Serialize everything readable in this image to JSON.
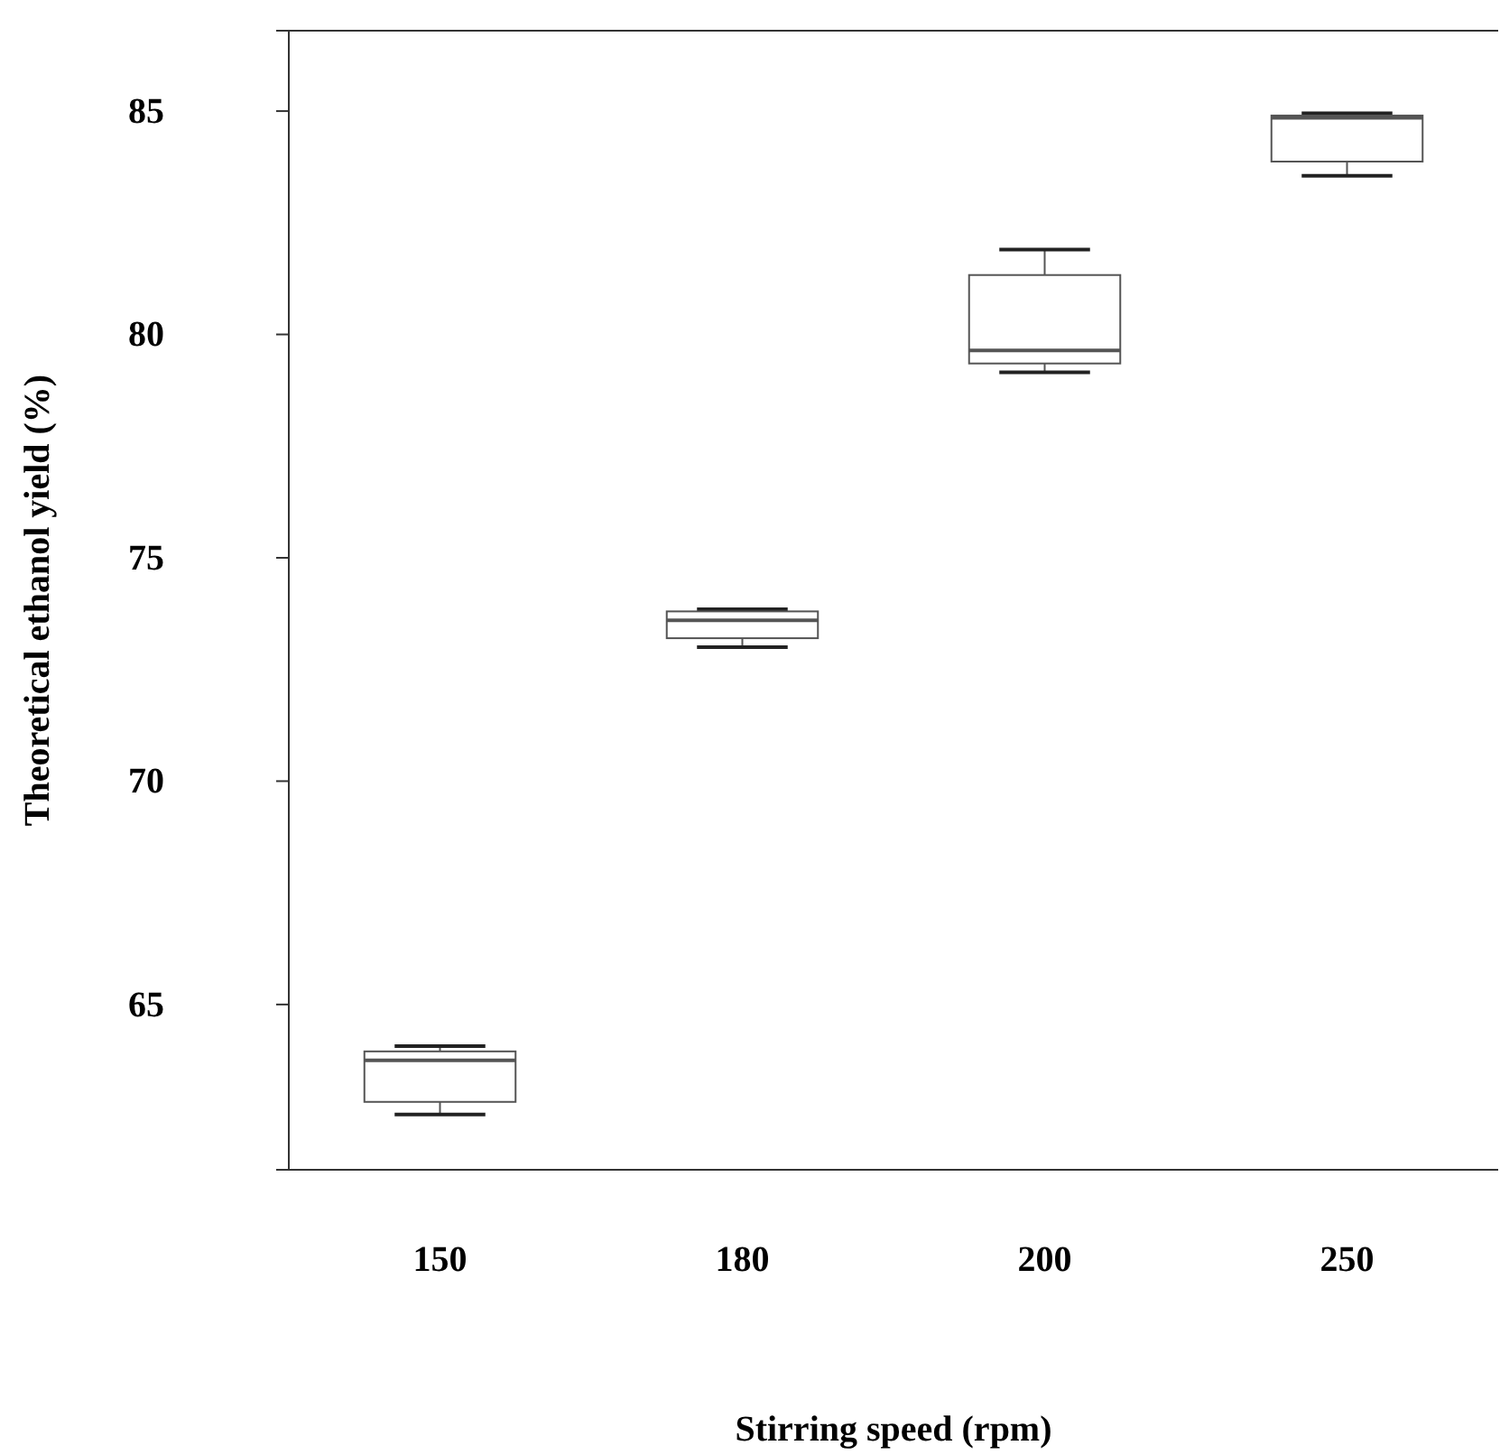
{
  "chart_data": {
    "type": "box",
    "xlabel": "Stirring speed (rpm)",
    "ylabel": "Theoretical ethanol yield (%)",
    "categories": [
      "150",
      "180",
      "200",
      "250"
    ],
    "boxes": [
      {
        "low": 62.54,
        "q1": 62.82,
        "median": 63.75,
        "q3": 63.95,
        "high": 64.07
      },
      {
        "low": 73.0,
        "q1": 73.2,
        "median": 73.6,
        "q3": 73.8,
        "high": 73.85
      },
      {
        "low": 79.15,
        "q1": 79.35,
        "median": 79.64,
        "q3": 81.33,
        "high": 81.9
      },
      {
        "low": 83.55,
        "q1": 83.87,
        "median": 84.85,
        "q3": 84.9,
        "high": 84.95
      }
    ],
    "color": "#555555",
    "ylim": [
      61.3,
      86.8
    ],
    "yticks": [
      65,
      70,
      75,
      80,
      85
    ],
    "grid": false
  }
}
